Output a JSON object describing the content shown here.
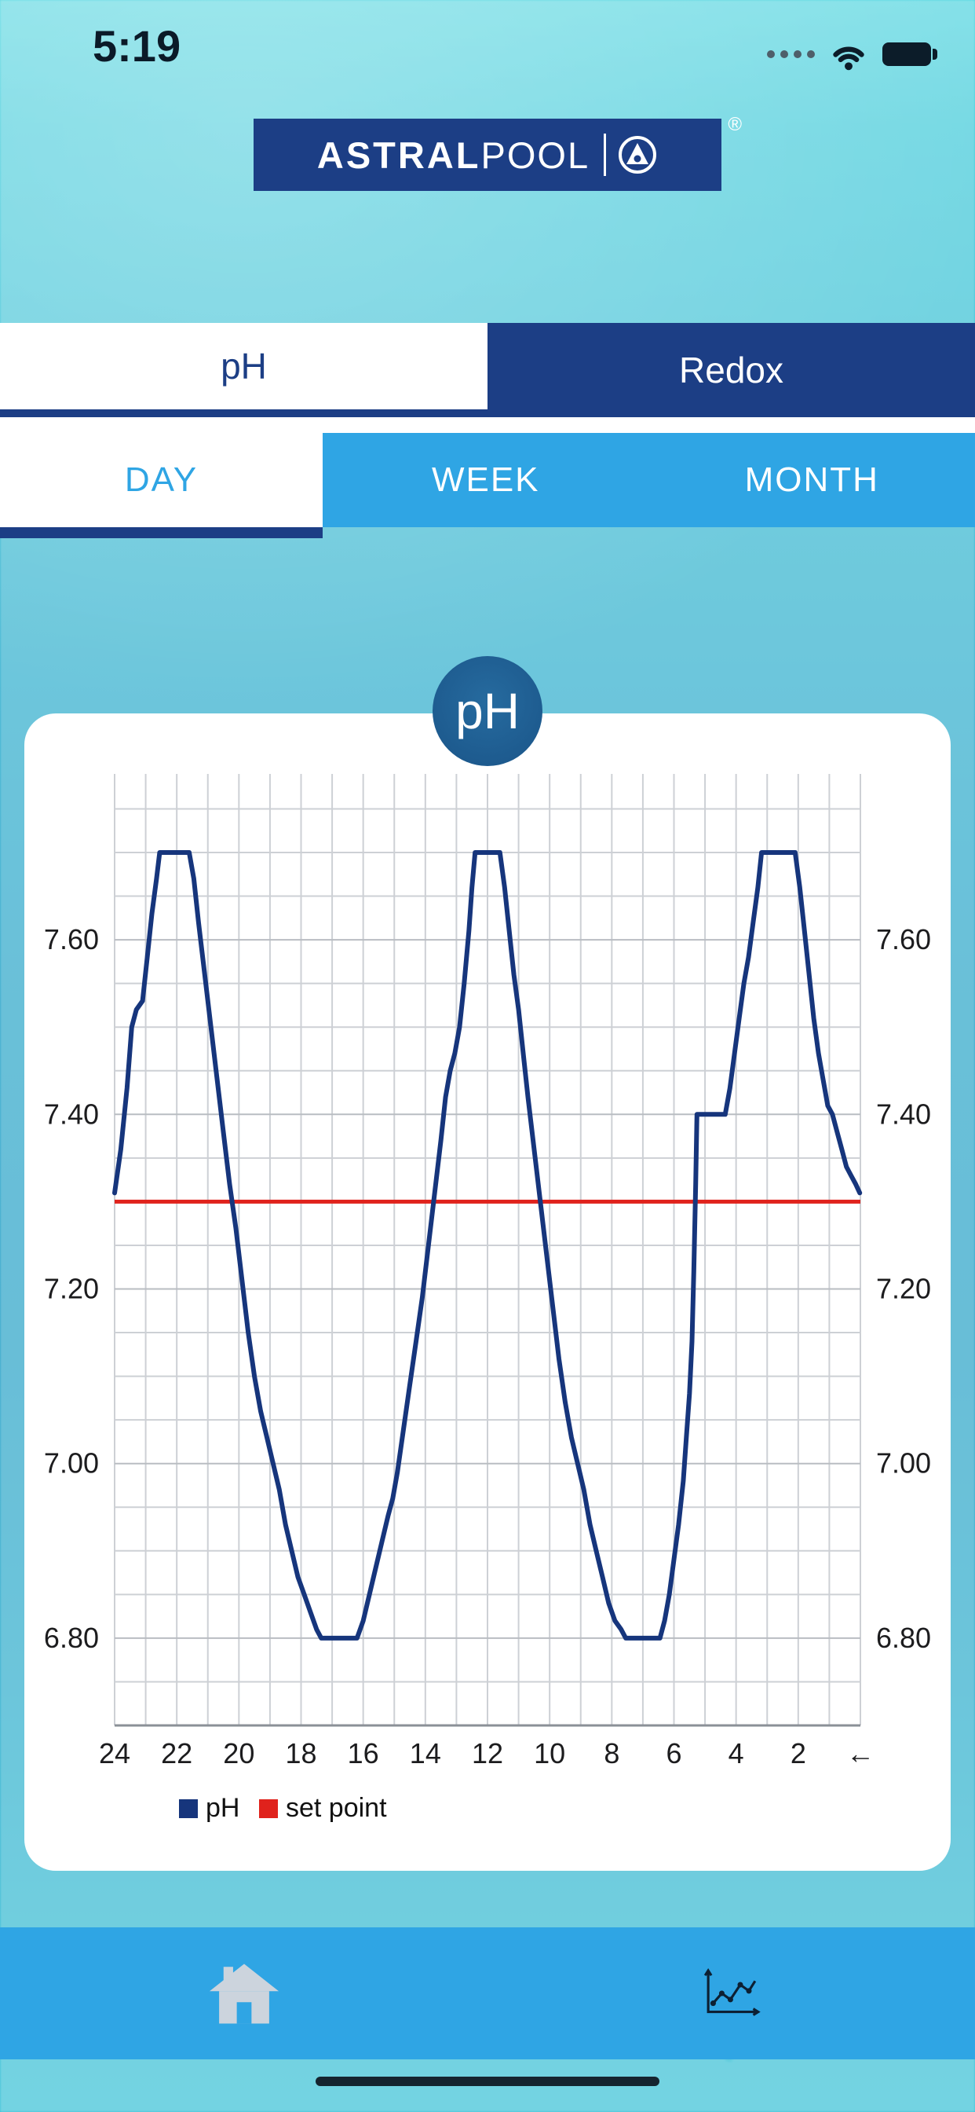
{
  "colors": {
    "navy": "#1c3e85",
    "light_blue": "#2fa5e4",
    "red": "#e0221c",
    "badge_blue": "#1d5a8e",
    "teal_top": "#35c9d9",
    "teal_mid": "#1ea9cb"
  },
  "status_bar": {
    "time": "5:19",
    "icons": [
      "cellular-dots-icon",
      "wifi-icon",
      "battery-icon"
    ]
  },
  "logo": {
    "brand_bold": "ASTRAL",
    "brand_light": "POOL",
    "registered": "®"
  },
  "tabs_primary": {
    "items": [
      {
        "label": "pH",
        "selected": true
      },
      {
        "label": "Redox",
        "selected": false
      }
    ]
  },
  "tabs_period": {
    "items": [
      {
        "label": "DAY",
        "selected": true
      },
      {
        "label": "WEEK",
        "selected": false
      },
      {
        "label": "MONTH",
        "selected": false
      }
    ]
  },
  "chart_badge": "pH",
  "chart_data": {
    "type": "line",
    "title": "pH",
    "grid_color": "#cdd0d5",
    "major_grid_color": "#b9bdc2",
    "axis_color": "#8b9097",
    "tick_color": "#1c1c1e",
    "x_axis": {
      "unit": "hours",
      "range": [
        24,
        0
      ],
      "grid_step_hours": 1,
      "ticks": [
        {
          "t": 24,
          "label": "24"
        },
        {
          "t": 22,
          "label": "22"
        },
        {
          "t": 20,
          "label": "20"
        },
        {
          "t": 18,
          "label": "18"
        },
        {
          "t": 16,
          "label": "16"
        },
        {
          "t": 14,
          "label": "14"
        },
        {
          "t": 12,
          "label": "12"
        },
        {
          "t": 10,
          "label": "10"
        },
        {
          "t": 8,
          "label": "8"
        },
        {
          "t": 6,
          "label": "6"
        },
        {
          "t": 4,
          "label": "4"
        },
        {
          "t": 2,
          "label": "2"
        },
        {
          "t": 0,
          "label": "←"
        }
      ]
    },
    "y_axis": {
      "range": [
        6.7,
        7.79
      ],
      "grid_step": 0.05,
      "ticks": [
        7.6,
        7.4,
        7.2,
        7.0,
        6.8
      ]
    },
    "set_point": {
      "value": 7.3,
      "color": "#e0221c"
    },
    "series": [
      {
        "name": "pH",
        "color": "#16357c",
        "points": [
          [
            24,
            7.31
          ],
          [
            23.8,
            7.36
          ],
          [
            23.6,
            7.43
          ],
          [
            23.45,
            7.5
          ],
          [
            23.3,
            7.52
          ],
          [
            23.1,
            7.53
          ],
          [
            22.95,
            7.58
          ],
          [
            22.8,
            7.63
          ],
          [
            22.65,
            7.67
          ],
          [
            22.55,
            7.7
          ],
          [
            21.6,
            7.7
          ],
          [
            21.45,
            7.67
          ],
          [
            21.3,
            7.62
          ],
          [
            21.1,
            7.56
          ],
          [
            20.9,
            7.5
          ],
          [
            20.7,
            7.44
          ],
          [
            20.5,
            7.38
          ],
          [
            20.3,
            7.32
          ],
          [
            20.1,
            7.27
          ],
          [
            19.9,
            7.21
          ],
          [
            19.7,
            7.15
          ],
          [
            19.5,
            7.1
          ],
          [
            19.3,
            7.06
          ],
          [
            19.1,
            7.03
          ],
          [
            18.9,
            7.0
          ],
          [
            18.7,
            6.97
          ],
          [
            18.5,
            6.93
          ],
          [
            18.3,
            6.9
          ],
          [
            18.1,
            6.87
          ],
          [
            17.9,
            6.85
          ],
          [
            17.7,
            6.83
          ],
          [
            17.5,
            6.81
          ],
          [
            17.35,
            6.8
          ],
          [
            16.2,
            6.8
          ],
          [
            16.0,
            6.82
          ],
          [
            15.8,
            6.85
          ],
          [
            15.6,
            6.88
          ],
          [
            15.4,
            6.91
          ],
          [
            15.2,
            6.94
          ],
          [
            15.05,
            6.96
          ],
          [
            14.9,
            6.99
          ],
          [
            14.7,
            7.04
          ],
          [
            14.5,
            7.09
          ],
          [
            14.3,
            7.14
          ],
          [
            14.1,
            7.19
          ],
          [
            13.9,
            7.25
          ],
          [
            13.7,
            7.31
          ],
          [
            13.5,
            7.37
          ],
          [
            13.35,
            7.42
          ],
          [
            13.2,
            7.45
          ],
          [
            13.05,
            7.47
          ],
          [
            12.9,
            7.5
          ],
          [
            12.75,
            7.55
          ],
          [
            12.6,
            7.61
          ],
          [
            12.5,
            7.66
          ],
          [
            12.4,
            7.7
          ],
          [
            11.6,
            7.7
          ],
          [
            11.45,
            7.66
          ],
          [
            11.3,
            7.61
          ],
          [
            11.15,
            7.56
          ],
          [
            11.0,
            7.52
          ],
          [
            10.85,
            7.47
          ],
          [
            10.7,
            7.42
          ],
          [
            10.5,
            7.36
          ],
          [
            10.3,
            7.3
          ],
          [
            10.1,
            7.24
          ],
          [
            9.9,
            7.18
          ],
          [
            9.7,
            7.12
          ],
          [
            9.5,
            7.07
          ],
          [
            9.3,
            7.03
          ],
          [
            9.1,
            7.0
          ],
          [
            8.9,
            6.97
          ],
          [
            8.7,
            6.93
          ],
          [
            8.5,
            6.9
          ],
          [
            8.3,
            6.87
          ],
          [
            8.1,
            6.84
          ],
          [
            7.9,
            6.82
          ],
          [
            7.7,
            6.81
          ],
          [
            7.55,
            6.8
          ],
          [
            6.45,
            6.8
          ],
          [
            6.3,
            6.82
          ],
          [
            6.15,
            6.85
          ],
          [
            6.0,
            6.89
          ],
          [
            5.85,
            6.93
          ],
          [
            5.7,
            6.98
          ],
          [
            5.6,
            7.03
          ],
          [
            5.5,
            7.08
          ],
          [
            5.42,
            7.14
          ],
          [
            5.36,
            7.22
          ],
          [
            5.3,
            7.32
          ],
          [
            5.26,
            7.4
          ],
          [
            4.35,
            7.4
          ],
          [
            4.2,
            7.43
          ],
          [
            4.05,
            7.47
          ],
          [
            3.9,
            7.51
          ],
          [
            3.75,
            7.55
          ],
          [
            3.6,
            7.58
          ],
          [
            3.45,
            7.62
          ],
          [
            3.3,
            7.66
          ],
          [
            3.18,
            7.7
          ],
          [
            2.1,
            7.7
          ],
          [
            1.95,
            7.66
          ],
          [
            1.8,
            7.61
          ],
          [
            1.65,
            7.56
          ],
          [
            1.5,
            7.51
          ],
          [
            1.35,
            7.47
          ],
          [
            1.2,
            7.44
          ],
          [
            1.05,
            7.41
          ],
          [
            0.9,
            7.4
          ],
          [
            0.75,
            7.38
          ],
          [
            0.6,
            7.36
          ],
          [
            0.45,
            7.34
          ],
          [
            0.3,
            7.33
          ],
          [
            0.15,
            7.32
          ],
          [
            0.02,
            7.31
          ]
        ]
      }
    ],
    "legend": [
      {
        "label": "pH",
        "color": "#16357c"
      },
      {
        "label": "set point",
        "color": "#e0221c"
      }
    ]
  },
  "bottom_nav": {
    "items": [
      {
        "name": "home",
        "icon": "house-icon"
      },
      {
        "name": "charts",
        "icon": "line-chart-icon"
      }
    ]
  }
}
